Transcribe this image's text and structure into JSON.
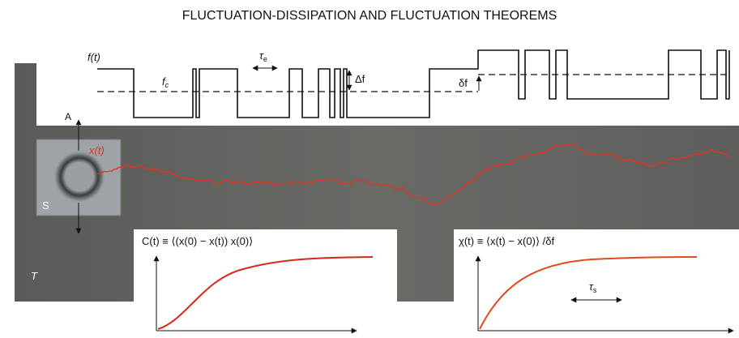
{
  "title": "FLUCTUATION-DISSIPATION AND FLUCTUATION THEOREMS",
  "top_panel": {
    "force_label": "f(t)",
    "tau_e": {
      "symbol": "τ",
      "sub": "e"
    },
    "delta_f_big": "Δf",
    "f_c": {
      "symbol": "f",
      "sub": "c"
    },
    "delta_f_small": "δf"
  },
  "sample": {
    "axis_label": "A",
    "trace_label": "x(t)",
    "square_label": "S",
    "temperature_label": "T"
  },
  "correlation_panel": {
    "label": "C(t) ≡ ⟨(x(0) − x(t)) x(0)⟩"
  },
  "response_panel": {
    "label": "χ(t) ≡ ⟨x(t) − x(0)⟩ /δf",
    "tau_s": {
      "symbol": "τ",
      "sub": "s"
    }
  }
}
